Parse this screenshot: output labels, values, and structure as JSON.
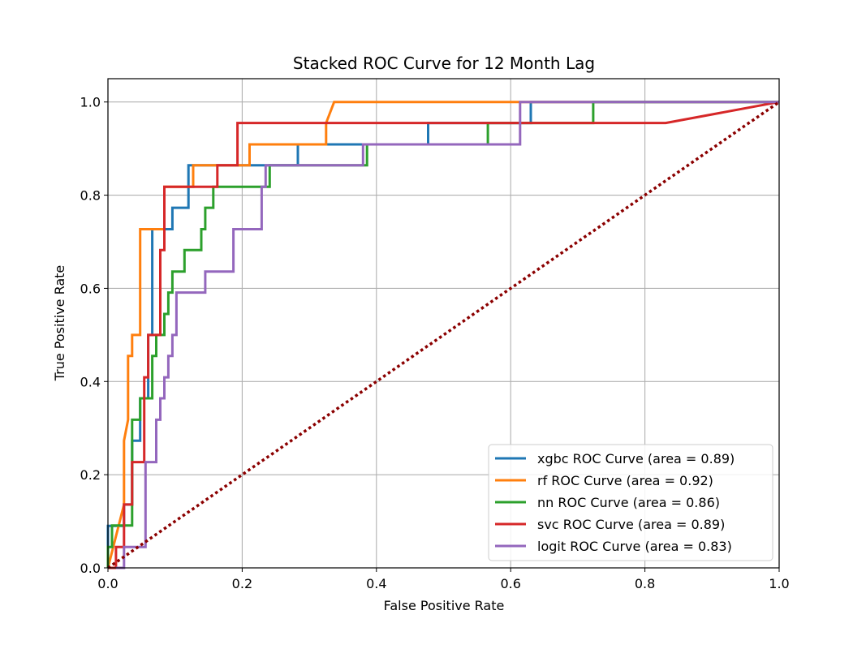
{
  "chart_data": {
    "type": "line",
    "title": "Stacked ROC Curve for 12 Month Lag",
    "xlabel": "False Positive Rate",
    "ylabel": "True Positive Rate",
    "xlim": [
      0.0,
      1.0
    ],
    "ylim": [
      0.0,
      1.05
    ],
    "xticks": [
      "0.0",
      "0.2",
      "0.4",
      "0.6",
      "0.8",
      "1.0"
    ],
    "yticks": [
      "0.0",
      "0.2",
      "0.4",
      "0.6",
      "0.8",
      "1.0"
    ],
    "grid": true,
    "legend_position": "lower-right",
    "series": [
      {
        "name": "xgbc ROC Curve (area = 0.89)",
        "color": "#1f77b4",
        "x": [
          0,
          0,
          0.024,
          0.024,
          0.036,
          0.036,
          0.048,
          0.048,
          0.06,
          0.06,
          0.066,
          0.066,
          0.096,
          0.096,
          0.12,
          0.12,
          0.283,
          0.283,
          0.477,
          0.477,
          0.63,
          0.63,
          1.0
        ],
        "y": [
          0,
          0.09,
          0.09,
          0.136,
          0.136,
          0.273,
          0.273,
          0.364,
          0.364,
          0.5,
          0.5,
          0.727,
          0.727,
          0.773,
          0.773,
          0.864,
          0.864,
          0.909,
          0.909,
          0.955,
          0.955,
          1.0,
          1.0
        ]
      },
      {
        "name": "rf ROC Curve (area = 0.92)",
        "color": "#ff7f0e",
        "x": [
          0,
          0.024,
          0.024,
          0.03,
          0.03,
          0.036,
          0.036,
          0.042,
          0.042,
          0.048,
          0.048,
          0.084,
          0.084,
          0.127,
          0.127,
          0.211,
          0.211,
          0.325,
          0.325,
          0.337,
          1.0
        ],
        "y": [
          0,
          0.136,
          0.273,
          0.318,
          0.455,
          0.455,
          0.5,
          0.5,
          0.5,
          0.5,
          0.727,
          0.727,
          0.818,
          0.818,
          0.864,
          0.864,
          0.909,
          0.909,
          0.955,
          1.0,
          1.0
        ]
      },
      {
        "name": "nn ROC Curve (area = 0.86)",
        "color": "#2ca02c",
        "x": [
          0,
          0,
          0.006,
          0.006,
          0.036,
          0.036,
          0.048,
          0.048,
          0.06,
          0.06,
          0.066,
          0.066,
          0.072,
          0.072,
          0.084,
          0.084,
          0.09,
          0.09,
          0.096,
          0.096,
          0.114,
          0.114,
          0.139,
          0.139,
          0.145,
          0.145,
          0.157,
          0.157,
          0.241,
          0.241,
          0.386,
          0.386,
          0.566,
          0.566,
          0.723,
          0.723,
          1.0
        ],
        "y": [
          0,
          0.045,
          0.045,
          0.091,
          0.091,
          0.318,
          0.318,
          0.364,
          0.364,
          0.364,
          0.364,
          0.455,
          0.455,
          0.5,
          0.5,
          0.545,
          0.545,
          0.591,
          0.591,
          0.636,
          0.636,
          0.682,
          0.682,
          0.727,
          0.727,
          0.773,
          0.773,
          0.818,
          0.818,
          0.864,
          0.864,
          0.909,
          0.909,
          0.955,
          0.955,
          1.0,
          1.0
        ]
      },
      {
        "name": "svc ROC Curve (area = 0.89)",
        "color": "#d62728",
        "x": [
          0,
          0.012,
          0.012,
          0.024,
          0.024,
          0.036,
          0.036,
          0.054,
          0.054,
          0.06,
          0.06,
          0.078,
          0.078,
          0.084,
          0.084,
          0.09,
          0.09,
          0.163,
          0.163,
          0.193,
          0.193,
          0.831,
          1.0
        ],
        "y": [
          0,
          0,
          0.045,
          0.045,
          0.136,
          0.136,
          0.227,
          0.227,
          0.409,
          0.409,
          0.5,
          0.5,
          0.682,
          0.682,
          0.818,
          0.818,
          0.818,
          0.818,
          0.864,
          0.864,
          0.955,
          0.955,
          1.0
        ]
      },
      {
        "name": "logit ROC Curve (area = 0.83)",
        "color": "#9467bd",
        "x": [
          0.012,
          0.024,
          0.024,
          0.056,
          0.056,
          0.072,
          0.072,
          0.078,
          0.078,
          0.084,
          0.084,
          0.09,
          0.09,
          0.096,
          0.096,
          0.102,
          0.102,
          0.108,
          0.108,
          0.145,
          0.145,
          0.187,
          0.187,
          0.229,
          0.229,
          0.235,
          0.235,
          0.38,
          0.38,
          0.614,
          0.614,
          1.0
        ],
        "y": [
          0,
          0,
          0.045,
          0.045,
          0.227,
          0.227,
          0.318,
          0.318,
          0.364,
          0.364,
          0.409,
          0.409,
          0.455,
          0.455,
          0.5,
          0.5,
          0.591,
          0.591,
          0.591,
          0.591,
          0.636,
          0.636,
          0.727,
          0.727,
          0.818,
          0.818,
          0.864,
          0.864,
          0.909,
          0.909,
          1.0,
          1.0
        ]
      },
      {
        "name": "",
        "color": "#8b0000",
        "style": "dotted",
        "x": [
          0,
          1.0
        ],
        "y": [
          0,
          1.0
        ]
      }
    ]
  }
}
